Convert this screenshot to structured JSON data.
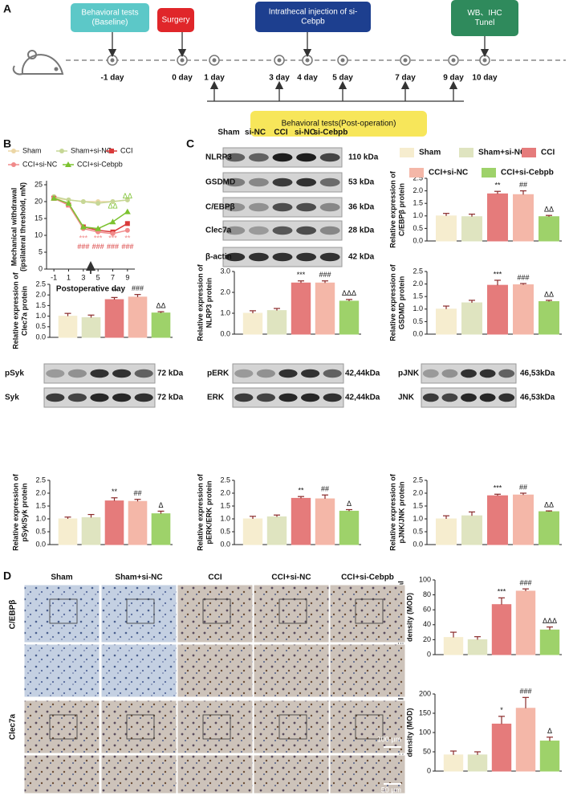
{
  "panel_labels": [
    "A",
    "B",
    "C",
    "D"
  ],
  "timeline": {
    "boxes": [
      [
        "Behavioral tests",
        "(Baseline)"
      ],
      [
        "Surgery"
      ],
      [
        "Intrathecal injection of si-",
        "Cebpb"
      ],
      [
        "WB、IHC",
        "Tunel"
      ]
    ],
    "days": [
      "-1 day",
      "0 day",
      "1 day",
      "3 day",
      "4 day",
      "5 day",
      "7 day",
      "9 day",
      "10 day"
    ],
    "post_op": "Behavioral tests(Post-operation)"
  },
  "blots_c": {
    "lanes": [
      "Sham",
      "si-NC",
      "CCI",
      "si-NC",
      "si-Cebpb"
    ],
    "rows": [
      {
        "label": "NLRP3",
        "size": "110 kDa"
      },
      {
        "label": "GSDMD",
        "size": "53 kDa"
      },
      {
        "label": "C/EBPβ",
        "size": "36 kDa"
      },
      {
        "label": "Clec7a",
        "size": "28 kDa"
      },
      {
        "label": "β-actin",
        "size": "42 kDa"
      }
    ]
  },
  "blots_lower": [
    {
      "rows": [
        {
          "label": "pSyk",
          "size": "72 kDa"
        },
        {
          "label": "Syk",
          "size": "72 kDa"
        }
      ]
    },
    {
      "rows": [
        {
          "label": "pERK",
          "size": "42,44kDa"
        },
        {
          "label": "ERK",
          "size": "42,44kDa"
        }
      ]
    },
    {
      "rows": [
        {
          "label": "pJNK",
          "size": "46,53kDa"
        },
        {
          "label": "JNK",
          "size": "46,53kDa"
        }
      ]
    }
  ],
  "histology": {
    "columns": [
      "Sham",
      "Sham+si-NC",
      "CCI",
      "CCI+si-NC",
      "CCI+si-Cebpb"
    ],
    "rows": [
      "C/EBPβ",
      "Clec7a"
    ],
    "scale_bars": [
      "100 μm",
      "50 μm"
    ]
  },
  "bar_legend": {
    "names": [
      "Sham",
      "Sham+si-NC",
      "CCI",
      "CCI+si-NC",
      "CCI+si-Cebpb"
    ],
    "colors": [
      "#f6edcf",
      "#dfe4c0",
      "#e57b7b",
      "#f4b7a8",
      "#9ed26a"
    ]
  },
  "chart_data": [
    {
      "type": "line",
      "ylabel": [
        "Mechanical withdrawal",
        "(ipsilateral threshold, mN)"
      ],
      "xlabel": "Postoperative day",
      "x": [
        -1,
        1,
        3,
        5,
        7,
        9
      ],
      "xlim": [
        -2,
        10
      ],
      "xticks": [
        -1,
        1,
        3,
        5,
        7,
        9
      ],
      "ylim": [
        0,
        25
      ],
      "yticks": [
        0,
        5,
        10,
        15,
        20,
        25
      ],
      "series": [
        {
          "name": "Sham",
          "color": "#ecd7a6",
          "marker": "circle",
          "values": [
            21,
            20.5,
            20,
            20,
            20,
            20.5
          ]
        },
        {
          "name": "Sham+si-NC",
          "color": "#c6d796",
          "marker": "circle",
          "values": [
            21.5,
            20.5,
            20,
            19.5,
            20,
            20.5
          ]
        },
        {
          "name": "CCI",
          "color": "#d93a3a",
          "marker": "square",
          "values": [
            21,
            19,
            12.5,
            11.5,
            11,
            13.5
          ]
        },
        {
          "name": "CCI+si-NC",
          "color": "#f08a8a",
          "marker": "circle",
          "values": [
            21,
            19,
            12,
            11,
            10.5,
            11.5
          ]
        },
        {
          "name": "CCI+si-Cebpb",
          "color": "#7cc230",
          "marker": "triangle",
          "values": [
            21,
            19.5,
            12.5,
            12,
            14,
            17
          ]
        }
      ],
      "annotations": [
        {
          "x": 3,
          "y": 9,
          "text": "***",
          "color": "#f08a8a"
        },
        {
          "x": 3,
          "y": 6.5,
          "text": "###",
          "color": "#d93a3a"
        },
        {
          "x": 5,
          "y": 9,
          "text": "***",
          "color": "#f08a8a"
        },
        {
          "x": 5,
          "y": 6.5,
          "text": "###",
          "color": "#d93a3a"
        },
        {
          "x": 7,
          "y": 18.5,
          "text": "ΔΔ",
          "color": "#7cc230"
        },
        {
          "x": 7,
          "y": 9,
          "text": "***",
          "color": "#f08a8a"
        },
        {
          "x": 7,
          "y": 6.5,
          "text": "###",
          "color": "#d93a3a"
        },
        {
          "x": 9,
          "y": 21.5,
          "text": "ΔΔ",
          "color": "#7cc230"
        },
        {
          "x": 9,
          "y": 9,
          "text": "**",
          "color": "#f08a8a"
        },
        {
          "x": 9,
          "y": 6.5,
          "text": "###",
          "color": "#d93a3a"
        }
      ]
    },
    {
      "type": "bar",
      "ylabel": [
        "Relative expression of",
        "C/EBPβ protein"
      ],
      "ylim": [
        0,
        2.5
      ],
      "yticks": [
        {
          "value": 0,
          "label": "0.0"
        },
        0.5,
        {
          "value": 1,
          "label": "1.0"
        },
        1.5,
        {
          "value": 2,
          "label": "2.0"
        },
        2.5
      ],
      "values": [
        1.0,
        0.97,
        1.88,
        1.85,
        0.97
      ],
      "errors": [
        0.1,
        0.1,
        0.1,
        0.15,
        0.05
      ],
      "annotations": [
        null,
        null,
        "**",
        "##",
        "ΔΔ"
      ]
    },
    {
      "type": "bar",
      "ylabel": [
        "Relative expression of",
        "Clec7a protein"
      ],
      "ylim": [
        0,
        2.5
      ],
      "yticks": [
        {
          "value": 0,
          "label": "0.0"
        },
        0.5,
        {
          "value": 1,
          "label": "1.0"
        },
        1.5,
        {
          "value": 2,
          "label": "2.0"
        },
        2.5
      ],
      "values": [
        1.0,
        0.93,
        1.78,
        1.9,
        1.15
      ],
      "errors": [
        0.13,
        0.12,
        0.1,
        0.12,
        0.06
      ],
      "annotations": [
        null,
        null,
        "**",
        "###",
        "ΔΔ"
      ]
    },
    {
      "type": "bar",
      "ylabel": [
        "Relative expression of",
        "NLRP3 protein"
      ],
      "ylim": [
        0,
        3
      ],
      "yticks": [
        {
          "value": 0,
          "label": "0.0"
        },
        {
          "value": 1,
          "label": "1.0"
        },
        {
          "value": 2,
          "label": "2.0"
        },
        {
          "value": 3,
          "label": "3.0"
        }
      ],
      "values": [
        1.0,
        1.13,
        2.45,
        2.45,
        1.58
      ],
      "errors": [
        0.12,
        0.1,
        0.1,
        0.1,
        0.08
      ],
      "annotations": [
        null,
        null,
        "***",
        "###",
        "ΔΔΔ"
      ]
    },
    {
      "type": "bar",
      "ylabel": [
        "Relative expression of",
        "GSDMD protein"
      ],
      "ylim": [
        0,
        2.5
      ],
      "yticks": [
        {
          "value": 0,
          "label": "0.0"
        },
        0.5,
        {
          "value": 1,
          "label": "1.0"
        },
        1.5,
        {
          "value": 2,
          "label": "2.0"
        },
        2.5
      ],
      "values": [
        1.0,
        1.25,
        1.95,
        1.97,
        1.3
      ],
      "errors": [
        0.12,
        0.1,
        0.2,
        0.05,
        0.05
      ],
      "annotations": [
        null,
        null,
        "***",
        "###",
        "ΔΔ"
      ]
    },
    {
      "type": "bar",
      "ylabel": [
        "Relative expression of",
        "pSyk/Syk protein"
      ],
      "ylim": [
        0,
        2.5
      ],
      "yticks": [
        {
          "value": 0,
          "label": "0.0"
        },
        0.5,
        {
          "value": 1,
          "label": "1.0"
        },
        1.5,
        {
          "value": 2,
          "label": "2.0"
        },
        2.5
      ],
      "values": [
        1.0,
        1.05,
        1.7,
        1.68,
        1.2
      ],
      "errors": [
        0.07,
        0.12,
        0.12,
        0.08,
        0.1
      ],
      "annotations": [
        null,
        null,
        "**",
        "##",
        "Δ"
      ]
    },
    {
      "type": "bar",
      "ylabel": [
        "Relative expression of",
        "pERK/ERK protein"
      ],
      "ylim": [
        0,
        2.5
      ],
      "yticks": [
        {
          "value": 0,
          "label": "0.0"
        },
        0.5,
        {
          "value": 1,
          "label": "1.0"
        },
        1.5,
        {
          "value": 2,
          "label": "2.0"
        },
        2.5
      ],
      "values": [
        1.0,
        1.08,
        1.8,
        1.78,
        1.3
      ],
      "errors": [
        0.1,
        0.07,
        0.07,
        0.15,
        0.06
      ],
      "annotations": [
        null,
        null,
        "**",
        "##",
        "Δ"
      ]
    },
    {
      "type": "bar",
      "ylabel": [
        "Relative expression of",
        "pJNK/JNK protein"
      ],
      "ylim": [
        0,
        2.5
      ],
      "yticks": [
        {
          "value": 0,
          "label": "0.0"
        },
        0.5,
        {
          "value": 1,
          "label": "1.0"
        },
        1.5,
        {
          "value": 2,
          "label": "2.0"
        },
        2.5
      ],
      "values": [
        1.0,
        1.12,
        1.9,
        1.93,
        1.28
      ],
      "errors": [
        0.12,
        0.15,
        0.06,
        0.07,
        0.03
      ],
      "annotations": [
        null,
        null,
        "***",
        "##",
        "ΔΔ"
      ]
    },
    {
      "type": "bar",
      "ylabel": [
        "C/EBPβ mean optical",
        "density (MOD)"
      ],
      "ylim": [
        0,
        100
      ],
      "yticks": [
        0,
        20,
        40,
        60,
        80,
        100
      ],
      "values": [
        23,
        20,
        67,
        85,
        33
      ],
      "errors": [
        7,
        4,
        9,
        3,
        4
      ],
      "annotations": [
        null,
        null,
        "***",
        "###",
        "ΔΔΔ"
      ]
    },
    {
      "type": "bar",
      "ylabel": [
        "Clec7a mean optical",
        "density (MOD)"
      ],
      "ylim": [
        0,
        200
      ],
      "yticks": [
        0,
        50,
        100,
        150,
        200
      ],
      "values": [
        42,
        42,
        122,
        163,
        78
      ],
      "errors": [
        10,
        8,
        20,
        28,
        10
      ],
      "annotations": [
        null,
        null,
        "*",
        "###",
        "Δ"
      ]
    }
  ]
}
